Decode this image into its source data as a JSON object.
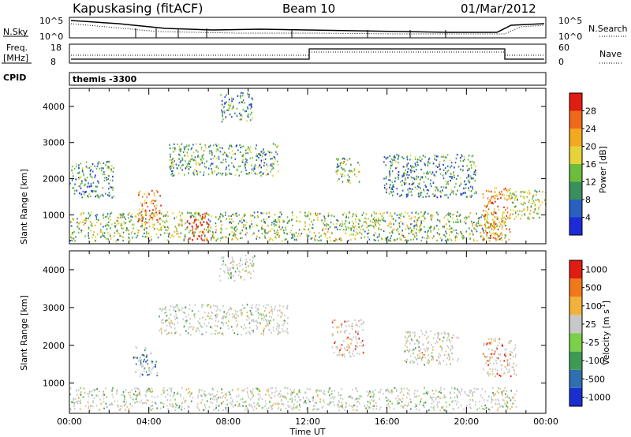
{
  "header": {
    "station": "Kapuskasing (fitACF)",
    "beam": "Beam 10",
    "date": "01/Mar/2012"
  },
  "panels": {
    "noise": {
      "left_label": "N.Sky",
      "right_label": "N.Search",
      "left_ticks": [
        "10^5",
        "10^0"
      ],
      "right_ticks": [
        "10^5",
        "10^0"
      ]
    },
    "freq": {
      "left_label_1": "Freq.",
      "left_label_2": "[MHz]",
      "left_ticks": [
        "18",
        "8"
      ],
      "right_label": "Nave",
      "right_ticks": [
        "60",
        "0"
      ]
    },
    "cpid": {
      "label": "CPID",
      "value": "themis -3300"
    }
  },
  "chart_data": [
    {
      "type": "heatmap",
      "title": "Power",
      "ylabel": "Slant Range [km]",
      "xlabel": "",
      "y_ticks": [
        "1000",
        "2000",
        "3000",
        "4000"
      ],
      "ylim": [
        200,
        4500
      ],
      "xlim_hours": [
        0,
        24
      ],
      "colorbar": {
        "label": "Power [dB]",
        "ticks": [
          "4",
          "8",
          "12",
          "16",
          "20",
          "24",
          "28"
        ],
        "colors": [
          "#1d2ad8",
          "#2a5fc0",
          "#3a8f5e",
          "#6bbd3c",
          "#e6d33a",
          "#f2a91f",
          "#ee6a1a",
          "#e01d12"
        ]
      },
      "regions": [
        {
          "name": "near-range band",
          "start": 0.0,
          "end": 22.0,
          "r_min": 300,
          "r_max": 1100,
          "level": 0.45
        },
        {
          "name": "high-power patch 03:30",
          "start": 3.4,
          "end": 4.6,
          "r_min": 800,
          "r_max": 1700,
          "level": 0.8
        },
        {
          "name": "high-power patch 06:00",
          "start": 5.9,
          "end": 7.0,
          "r_min": 300,
          "r_max": 1100,
          "level": 0.95
        },
        {
          "name": "arc 05:00-10:30",
          "start": 5.0,
          "end": 10.5,
          "r_min": 2100,
          "r_max": 3000,
          "level": 0.35
        },
        {
          "name": "far echoes 08:00",
          "start": 7.6,
          "end": 9.2,
          "r_min": 3600,
          "r_max": 4400,
          "level": 0.3
        },
        {
          "name": "patch 13:30",
          "start": 13.4,
          "end": 14.6,
          "r_min": 1900,
          "r_max": 2600,
          "level": 0.45
        },
        {
          "name": "band 16:00-20:00",
          "start": 15.8,
          "end": 20.5,
          "r_min": 1500,
          "r_max": 2700,
          "level": 0.3
        },
        {
          "name": "intense 21:00",
          "start": 20.8,
          "end": 22.2,
          "r_min": 300,
          "r_max": 1800,
          "level": 0.75
        },
        {
          "name": "late 22:00-24:00",
          "start": 22.0,
          "end": 24.0,
          "r_min": 900,
          "r_max": 1700,
          "level": 0.5
        },
        {
          "name": "early 00:00-02:00",
          "start": 0.0,
          "end": 2.2,
          "r_min": 1500,
          "r_max": 2500,
          "level": 0.3
        }
      ]
    },
    {
      "type": "heatmap",
      "title": "Velocity",
      "ylabel": "Slant Range [km]",
      "xlabel": "Time UT",
      "y_ticks": [
        "1000",
        "2000",
        "3000",
        "4000"
      ],
      "ylim": [
        200,
        4500
      ],
      "xlim_hours": [
        0,
        24
      ],
      "x_ticks": [
        "00:00",
        "04:00",
        "08:00",
        "12:00",
        "16:00",
        "20:00",
        "00:00"
      ],
      "colorbar": {
        "label": "Velocity [m s-1]",
        "label_main": "Velocity [m s",
        "label_sup": "-1",
        "label_end": "]",
        "ticks": [
          "1000",
          "500",
          "100",
          "25",
          "-25",
          "-100",
          "-500",
          "-1000"
        ],
        "colors": [
          "#1a2fd0",
          "#2f6fb0",
          "#3e9a52",
          "#7bd04a",
          "#c8c8c8",
          "#f2b23a",
          "#f07a1a",
          "#e01d12"
        ]
      },
      "regions": [
        {
          "name": "near-range band",
          "start": 0.0,
          "end": 22.5,
          "r_min": 300,
          "r_max": 900,
          "level": 0.5
        },
        {
          "name": "green patch 03:30",
          "start": 3.2,
          "end": 4.4,
          "r_min": 1200,
          "r_max": 2000,
          "level": 0.2
        },
        {
          "name": "arc 04:30-11:00",
          "start": 4.5,
          "end": 11.0,
          "r_min": 2300,
          "r_max": 3100,
          "level": 0.5
        },
        {
          "name": "orange patch 13:30",
          "start": 13.2,
          "end": 14.8,
          "r_min": 1700,
          "r_max": 2700,
          "level": 0.8
        },
        {
          "name": "band 17:00-19:30",
          "start": 16.8,
          "end": 19.6,
          "r_min": 1500,
          "r_max": 2400,
          "level": 0.55
        },
        {
          "name": "orange 21:00",
          "start": 20.8,
          "end": 22.5,
          "r_min": 1200,
          "r_max": 2200,
          "level": 0.8
        },
        {
          "name": "far grey 08:00",
          "start": 7.5,
          "end": 9.3,
          "r_min": 3700,
          "r_max": 4400,
          "level": 0.5
        }
      ]
    }
  ]
}
